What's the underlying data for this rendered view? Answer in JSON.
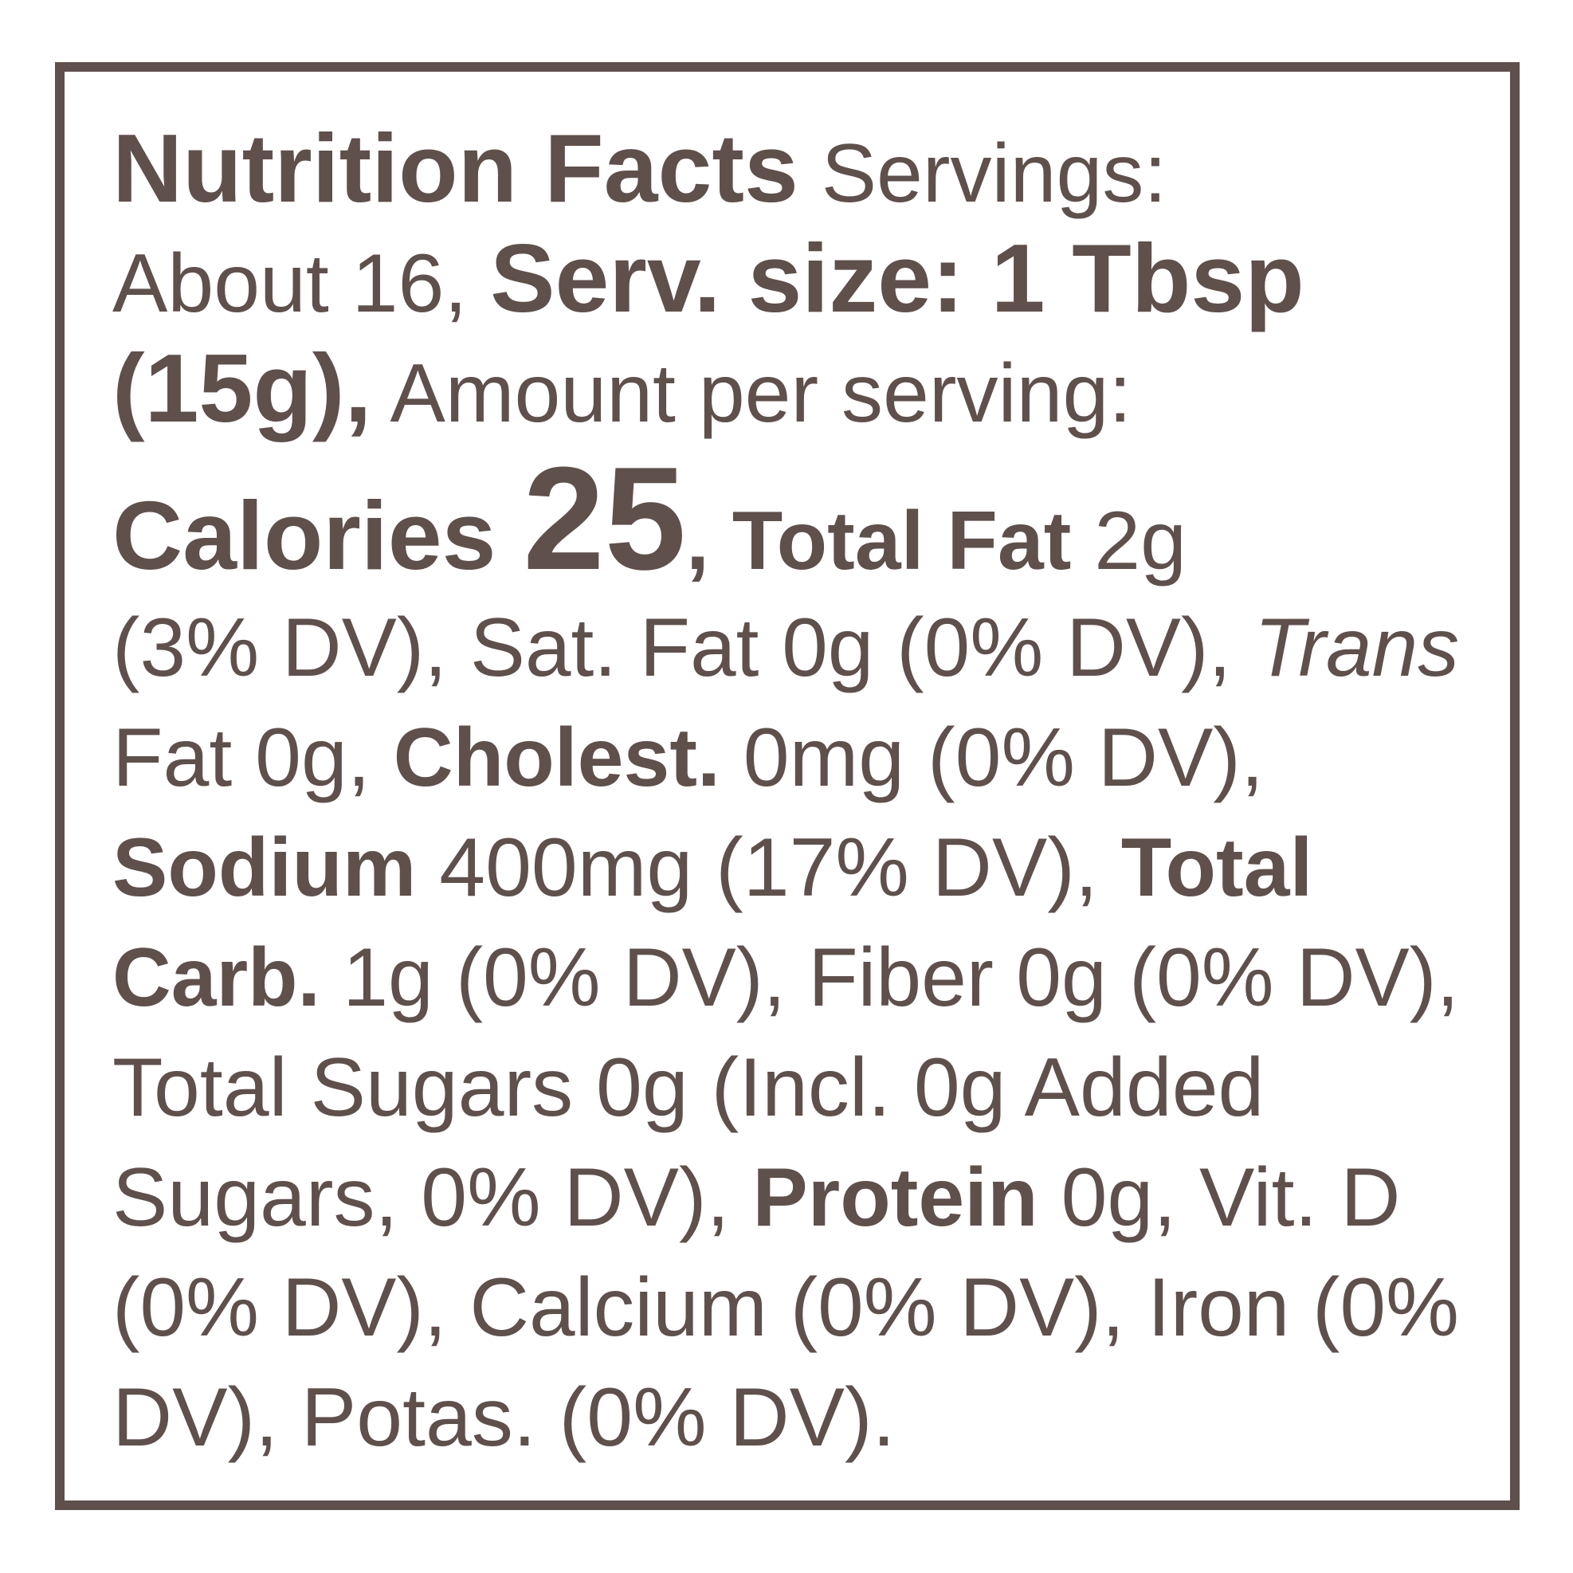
{
  "label": {
    "lines": [
      [
        {
          "text": "Nutrition Facts",
          "style": "bold-large"
        },
        {
          "text": " Servings:",
          "style": "regular"
        }
      ],
      [
        {
          "text": "About 16, ",
          "style": "regular"
        },
        {
          "text": "Serv. size: 1 Tbsp",
          "style": "bold-large"
        }
      ],
      [
        {
          "text": "(15g),",
          "style": "bold-large"
        },
        {
          "text": " Amount per serving:",
          "style": "regular"
        }
      ],
      [
        {
          "text": "Calories ",
          "style": "bold-large"
        },
        {
          "text": "25",
          "style": "bold-xlarge"
        },
        {
          "text": ", Total Fat",
          "style": "bold"
        },
        {
          "text": " 2g",
          "style": "regular"
        }
      ],
      [
        {
          "text": "(3% DV), Sat. Fat 0g (0% DV), ",
          "style": "regular"
        },
        {
          "text": "Trans",
          "style": "italic"
        }
      ],
      [
        {
          "text": "Fat 0g, ",
          "style": "regular"
        },
        {
          "text": "Cholest.",
          "style": "bold"
        },
        {
          "text": " 0mg (0% DV),",
          "style": "regular"
        }
      ],
      [
        {
          "text": "Sodium",
          "style": "bold"
        },
        {
          "text": " 400mg (17% DV), ",
          "style": "regular"
        },
        {
          "text": "Total",
          "style": "bold"
        }
      ],
      [
        {
          "text": "Carb.",
          "style": "bold"
        },
        {
          "text": " 1g (0% DV), Fiber 0g (0% DV),",
          "style": "regular"
        }
      ],
      [
        {
          "text": "Total Sugars 0g (Incl. 0g Added",
          "style": "regular"
        }
      ],
      [
        {
          "text": "Sugars, 0% DV), ",
          "style": "regular"
        },
        {
          "text": "Protein",
          "style": "bold"
        },
        {
          "text": " 0g, Vit. D",
          "style": "regular"
        }
      ],
      [
        {
          "text": "(0% DV), Calcium (0% DV), Iron (0%",
          "style": "regular"
        }
      ],
      [
        {
          "text": "DV), Potas. (0% DV).",
          "style": "regular"
        }
      ]
    ]
  }
}
